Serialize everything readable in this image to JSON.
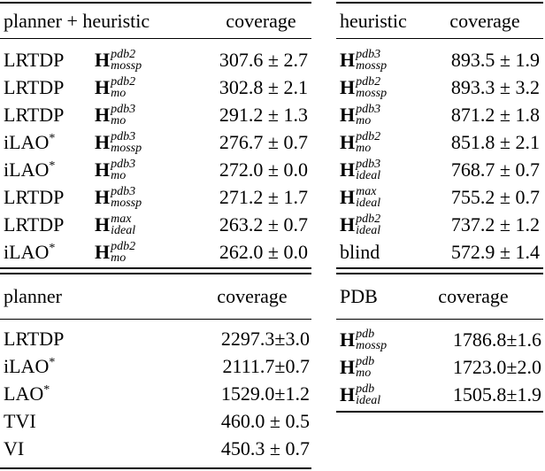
{
  "tables": [
    {
      "header": [
        "planner + heuristic",
        "coverage"
      ],
      "rows": [
        {
          "planner": {
            "text": "LRTDP"
          },
          "heuristic": {
            "base": "H",
            "sup": "pdb2",
            "sub": "mossp"
          },
          "coverage": "307.6 ± 2.7"
        },
        {
          "planner": {
            "text": "LRTDP"
          },
          "heuristic": {
            "base": "H",
            "sup": "pdb2",
            "sub": "mo"
          },
          "coverage": "302.8 ± 2.1"
        },
        {
          "planner": {
            "text": "LRTDP"
          },
          "heuristic": {
            "base": "H",
            "sup": "pdb3",
            "sub": "mo"
          },
          "coverage": "291.2 ± 1.3"
        },
        {
          "planner": {
            "text": "iLAO",
            "sup": "*"
          },
          "heuristic": {
            "base": "H",
            "sup": "pdb3",
            "sub": "mossp"
          },
          "coverage": "276.7 ± 0.7"
        },
        {
          "planner": {
            "text": "iLAO",
            "sup": "*"
          },
          "heuristic": {
            "base": "H",
            "sup": "pdb3",
            "sub": "mo"
          },
          "coverage": "272.0 ± 0.0"
        },
        {
          "planner": {
            "text": "LRTDP"
          },
          "heuristic": {
            "base": "H",
            "sup": "pdb3",
            "sub": "mossp"
          },
          "coverage": "271.2 ± 1.7"
        },
        {
          "planner": {
            "text": "LRTDP"
          },
          "heuristic": {
            "base": "H",
            "sup": "max",
            "sub": "ideal"
          },
          "coverage": "263.2 ± 0.7"
        },
        {
          "planner": {
            "text": "iLAO",
            "sup": "*"
          },
          "heuristic": {
            "base": "H",
            "sup": "pdb2",
            "sub": "mo"
          },
          "coverage": "262.0 ± 0.0"
        }
      ]
    },
    {
      "header": [
        "heuristic",
        "coverage"
      ],
      "rows": [
        {
          "heuristic": {
            "base": "H",
            "sup": "pdb3",
            "sub": "mossp"
          },
          "coverage": "893.5 ± 1.9"
        },
        {
          "heuristic": {
            "base": "H",
            "sup": "pdb2",
            "sub": "mossp"
          },
          "coverage": "893.3 ± 3.2"
        },
        {
          "heuristic": {
            "base": "H",
            "sup": "pdb3",
            "sub": "mo"
          },
          "coverage": "871.2 ± 1.8"
        },
        {
          "heuristic": {
            "base": "H",
            "sup": "pdb2",
            "sub": "mo"
          },
          "coverage": "851.8 ± 2.1"
        },
        {
          "heuristic": {
            "base": "H",
            "sup": "pdb3",
            "sub": "ideal"
          },
          "coverage": "768.7 ± 0.7"
        },
        {
          "heuristic": {
            "base": "H",
            "sup": "max",
            "sub": "ideal"
          },
          "coverage": "755.2 ± 0.7"
        },
        {
          "heuristic": {
            "base": "H",
            "sup": "pdb2",
            "sub": "ideal"
          },
          "coverage": "737.2 ± 1.2"
        },
        {
          "heuristic": {
            "base": "blind"
          },
          "coverage": "572.9 ± 1.4"
        }
      ]
    },
    {
      "header": [
        "planner",
        "coverage"
      ],
      "rows": [
        {
          "planner": {
            "text": "LRTDP"
          },
          "coverage": "2297.3±3.0"
        },
        {
          "planner": {
            "text": "iLAO",
            "sup": "*"
          },
          "coverage": "2111.7±0.7"
        },
        {
          "planner": {
            "text": "LAO",
            "sup": "*"
          },
          "coverage": "1529.0±1.2"
        },
        {
          "planner": {
            "text": "TVI"
          },
          "coverage": "460.0 ± 0.5"
        },
        {
          "planner": {
            "text": "VI"
          },
          "coverage": "450.3 ± 0.7"
        }
      ]
    },
    {
      "header": [
        "PDB",
        "coverage"
      ],
      "rows": [
        {
          "heuristic": {
            "base": "H",
            "sup": "pdb",
            "sub": "mossp"
          },
          "coverage": "1786.8±1.6"
        },
        {
          "heuristic": {
            "base": "H",
            "sup": "pdb",
            "sub": "mo"
          },
          "coverage": "1723.0±2.0"
        },
        {
          "heuristic": {
            "base": "H",
            "sup": "pdb",
            "sub": "ideal"
          },
          "coverage": "1505.8±1.9"
        }
      ]
    }
  ]
}
